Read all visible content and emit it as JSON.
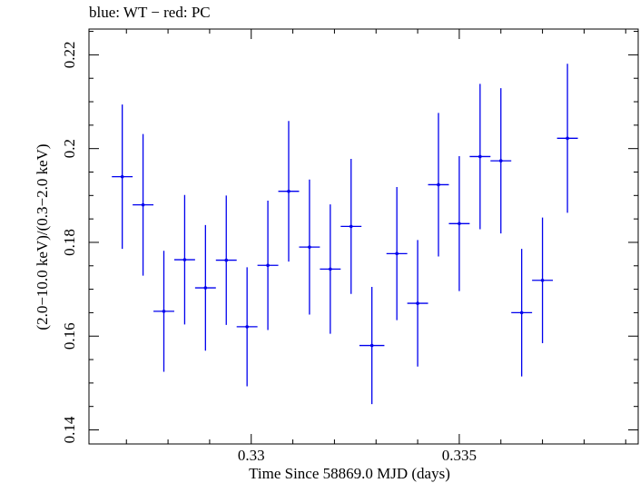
{
  "chart_data": {
    "type": "scatter",
    "title": "blue: WT − red: PC",
    "xlabel": "Time Since 58869.0 MJD (days)",
    "ylabel": "(2.0−10.0 keV)/(0.3−2.0 keV)",
    "xlim": [
      0.3261,
      0.3393
    ],
    "ylim": [
      0.137,
      0.2255
    ],
    "x_ticks": [
      0.33,
      0.335
    ],
    "x_tick_labels": [
      "0.33",
      "0.335"
    ],
    "y_ticks": [
      0.14,
      0.16,
      0.18,
      0.2,
      0.22
    ],
    "y_tick_labels": [
      "0.14",
      "0.16",
      "0.18",
      "0.2",
      "0.22"
    ],
    "grid": false,
    "series": [
      {
        "color": "#0000ee",
        "points": [
          {
            "x": 0.3269,
            "xerr": 0.00025,
            "y": 0.194,
            "yerr": 0.0154
          },
          {
            "x": 0.3274,
            "xerr": 0.00025,
            "y": 0.188,
            "yerr": 0.0151
          },
          {
            "x": 0.3279,
            "xerr": 0.00025,
            "y": 0.1653,
            "yerr": 0.0129
          },
          {
            "x": 0.3284,
            "xerr": 0.00025,
            "y": 0.1763,
            "yerr": 0.0138
          },
          {
            "x": 0.3289,
            "xerr": 0.00025,
            "y": 0.1703,
            "yerr": 0.0134
          },
          {
            "x": 0.3294,
            "xerr": 0.00025,
            "y": 0.1762,
            "yerr": 0.0138
          },
          {
            "x": 0.3299,
            "xerr": 0.00025,
            "y": 0.162,
            "yerr": 0.0127
          },
          {
            "x": 0.3304,
            "xerr": 0.00025,
            "y": 0.1751,
            "yerr": 0.0138
          },
          {
            "x": 0.3309,
            "xerr": 0.00025,
            "y": 0.1909,
            "yerr": 0.015
          },
          {
            "x": 0.3314,
            "xerr": 0.00025,
            "y": 0.179,
            "yerr": 0.0144
          },
          {
            "x": 0.3319,
            "xerr": 0.00025,
            "y": 0.1743,
            "yerr": 0.0138
          },
          {
            "x": 0.3324,
            "xerr": 0.00025,
            "y": 0.1834,
            "yerr": 0.0144
          },
          {
            "x": 0.3329,
            "xerr": 0.0003,
            "y": 0.158,
            "yerr": 0.0125
          },
          {
            "x": 0.3335,
            "xerr": 0.00025,
            "y": 0.1776,
            "yerr": 0.0142
          },
          {
            "x": 0.334,
            "xerr": 0.00025,
            "y": 0.167,
            "yerr": 0.0135
          },
          {
            "x": 0.3345,
            "xerr": 0.00025,
            "y": 0.1923,
            "yerr": 0.0153
          },
          {
            "x": 0.335,
            "xerr": 0.00025,
            "y": 0.184,
            "yerr": 0.0144
          },
          {
            "x": 0.3355,
            "xerr": 0.00025,
            "y": 0.1983,
            "yerr": 0.0155
          },
          {
            "x": 0.336,
            "xerr": 0.00025,
            "y": 0.1974,
            "yerr": 0.0155
          },
          {
            "x": 0.3365,
            "xerr": 0.00025,
            "y": 0.165,
            "yerr": 0.0136
          },
          {
            "x": 0.337,
            "xerr": 0.00025,
            "y": 0.1719,
            "yerr": 0.0134
          },
          {
            "x": 0.3376,
            "xerr": 0.00025,
            "y": 0.2022,
            "yerr": 0.0159
          }
        ]
      }
    ]
  }
}
